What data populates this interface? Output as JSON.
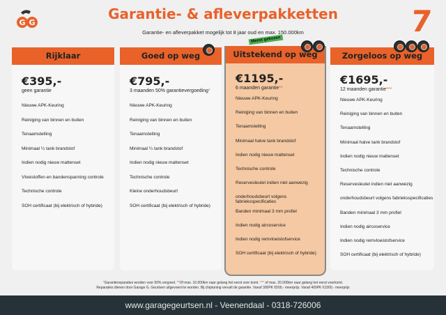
{
  "header": {
    "title": "Garantie- & afleverpakketten",
    "subtitle": "Garantie- en afleverpakket mogelijk tot 8 jaar oud en max. 150.000km",
    "logo_text": "GG",
    "badge": "Meest gekozen"
  },
  "brand_color": "#e8622a",
  "plans": [
    {
      "name": "Rijklaar",
      "price": "€395,-",
      "warranty": "geen garantie",
      "asterisk": "",
      "tires": 0,
      "features": [
        "Nieuwe APK-Keuring",
        "Reiniging van binnen en buiten",
        "Tenaamstelling",
        "Minimaal ¼  tank brandstof",
        "Indien nodig nieuw mattenset",
        "Vloeistoffen en bandenspanning controle",
        "Technische controle",
        "SOH certificaat (bij elektrisch of hybride)"
      ]
    },
    {
      "name": "Goed op weg",
      "price": "€795,-",
      "warranty": "3 maanden 50% garantievergoeding",
      "asterisk": "*",
      "tires": 1,
      "features": [
        "Nieuwe APK-Keuring",
        "Reiniging van binnen en buiten",
        "Tenaamstelling",
        "Minimaal ¼ tank brandstof",
        "Indien nodig nieuw mattenset",
        "Technische controle",
        "Kleine onderhoudsbeurt",
        "SOH certificaat (bij elektrisch of hybride)"
      ]
    },
    {
      "name": "Uitstekend op weg",
      "price": "€1195,-",
      "warranty": "6 maanden garantie",
      "asterisk": "**",
      "tires": 2,
      "features": [
        "Nieuwe APK-Keuring",
        "Reiniging van binnen en buiten",
        "Tenaamstelling",
        "Minimaal halve tank brandstof",
        "Indien nodig nieuw mattenset",
        "Technische controle",
        "Reservesleutel indien niet aanwezig",
        "onderhoudsbeurt volgens fabrieksspecificaties",
        "Banden minimaal 3 mm profiel",
        "Indien nodig aircoservice",
        "Indien nodig remvloeistofservice",
        "SOH certificaat (bij elektrisch of hybride)"
      ]
    },
    {
      "name": "Zorgeloos op weg",
      "price": "€1695,-",
      "warranty": "12 maanden garantie",
      "asterisk": "***",
      "tires": 3,
      "features": [
        "Nieuwe APK-Keuring",
        "Reiniging van binnen en buiten",
        "Tenaamstelling",
        "Minimaal halve tank brandstof",
        "Indien nodig nieuw mattenset",
        "Technische controle",
        "Reservesleutel indien niet aanwezig",
        "onderhoudsbeurt volgens fabrieksspecificaties",
        "Banden minimaal 3 mm profiel",
        "Indien nodig aircoservice",
        "Indien nodig remvloeistofservice",
        "SOH certificaat (bij elektrisch of hybride)"
      ]
    }
  ],
  "footnote": {
    "a1": "*",
    "t1": "Garantiereparaties worden voor 50% vergoed. ",
    "a2": "**",
    "t2": "Of max. 10.000km naar gelang het eerst voor komt. ",
    "a3": "***",
    "t3": " of max. 20.000km naar gelang het eerst voorkomt.",
    "line2": "Reparaties dienen door Garage G. Geurtsen uitgevoerd te worden. Bij chiptuning vervalt de garantie. Vanaf 300PK €500,- meerprijs. Vanaf 400PK €1000,- meerprijs"
  },
  "footer": {
    "text": "www.garagegeurtsen.nl - Veenendaal - 0318-726006"
  }
}
